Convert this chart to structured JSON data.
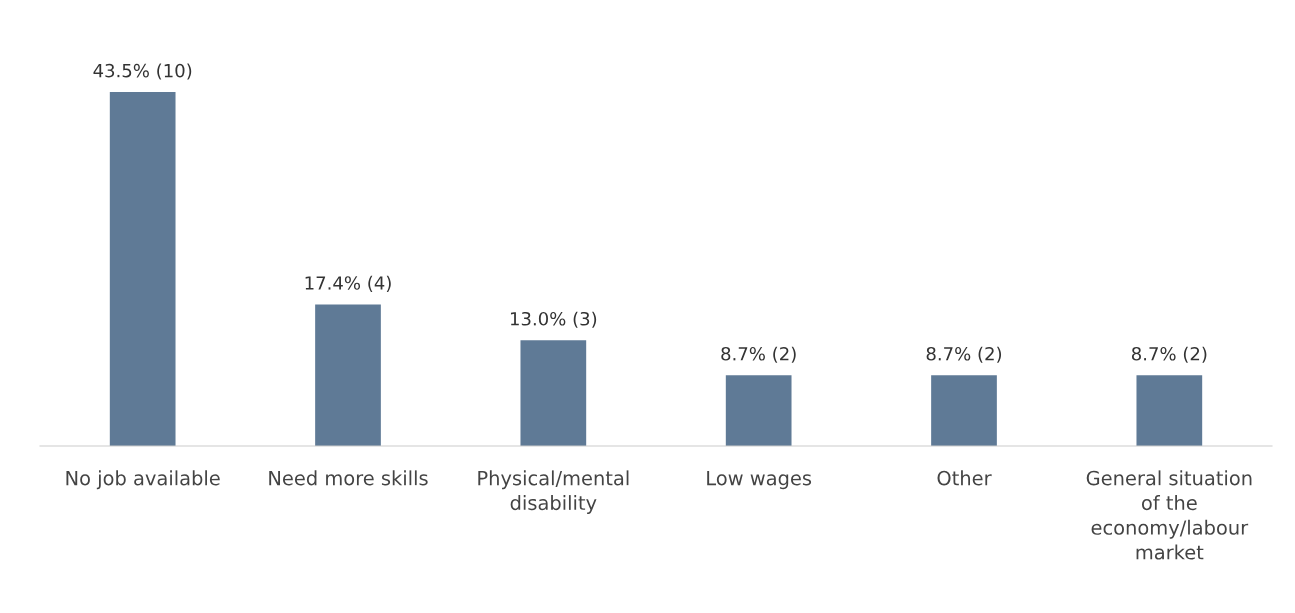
{
  "chart_data": {
    "type": "bar",
    "categories": [
      "No job available",
      "Need more skills",
      "Physical/mental disability",
      "Low wages",
      "Other",
      "General situation of the economy/labour market"
    ],
    "values": [
      43.5,
      17.4,
      13.0,
      8.7,
      8.7,
      8.7
    ],
    "value_labels": [
      "43.5% (10)",
      "17.4% (4)",
      "13.0% (3)",
      "8.7% (2)",
      "8.7% (2)",
      "8.7% (2)"
    ],
    "color": "#5f7a96"
  }
}
